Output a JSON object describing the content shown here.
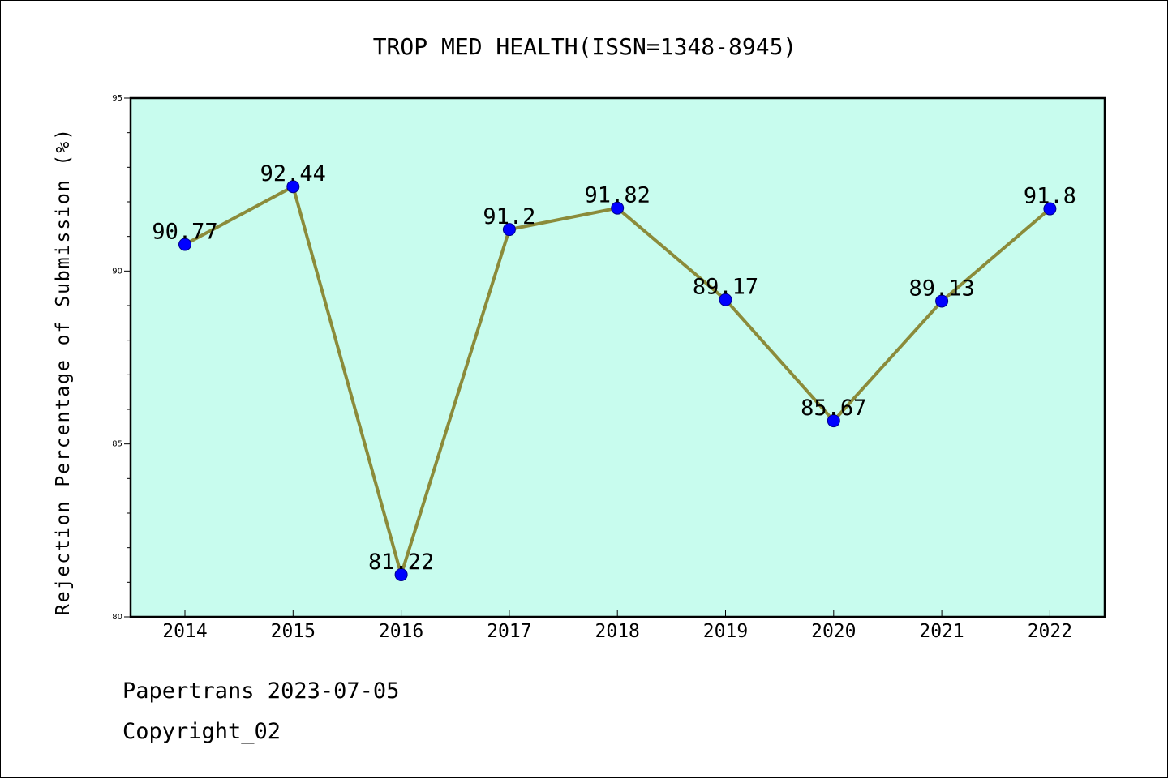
{
  "chart_data": {
    "type": "line",
    "title": "TROP MED HEALTH(ISSN=1348-8945)",
    "xlabel": "",
    "ylabel": "Rejection Percentage of Submission (%)",
    "categories": [
      "2014",
      "2015",
      "2016",
      "2017",
      "2018",
      "2019",
      "2020",
      "2021",
      "2022"
    ],
    "series": [
      {
        "values": [
          90.77,
          92.44,
          81.22,
          91.2,
          91.82,
          89.17,
          85.67,
          89.13,
          91.8
        ]
      }
    ],
    "data_labels": [
      "90.77",
      "92.44",
      "81.22",
      "91.2",
      "91.82",
      "89.17",
      "85.67",
      "89.13",
      "91.8"
    ],
    "ylim": [
      80,
      95
    ],
    "y_major_ticks": [
      80,
      85,
      90,
      95
    ],
    "y_minor_step": 1,
    "grid": false,
    "legend": "none",
    "colors": {
      "plot_background": "#c8fcee",
      "line": "#8b8b3a",
      "marker": "#0000ff",
      "axes": "#000000"
    }
  },
  "footer": {
    "line1": "Papertrans 2023-07-05",
    "line2": "Copyright_02"
  }
}
